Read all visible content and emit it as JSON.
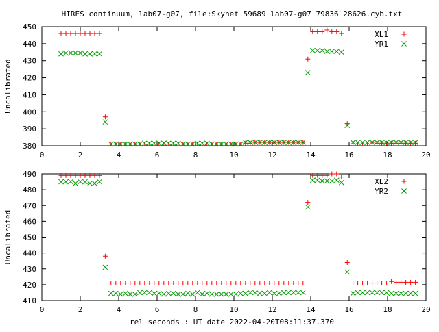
{
  "title": "HIRES continuum, lab07-g07, file:Skynet_59689_lab07-g07_79836_28626.cyb.txt",
  "xlabel": "rel seconds : UT date 2022-04-20T08:11:37.370",
  "colors": {
    "xl": "#ff0000",
    "yr": "#009900",
    "axis": "#000000",
    "background": "#ffffff"
  },
  "chart_data": [
    {
      "type": "scatter",
      "title": "",
      "xlabel": "",
      "ylabel": "Uncalibrated",
      "xlim": [
        0,
        20
      ],
      "ylim": [
        380,
        450
      ],
      "xticks": [
        "0",
        "2",
        "4",
        "6",
        "8",
        "10",
        "12",
        "14",
        "16",
        "18",
        "20"
      ],
      "yticks": [
        "380",
        "390",
        "400",
        "410",
        "420",
        "430",
        "440",
        "450"
      ],
      "grid": false,
      "legend_position": "top-right",
      "series": [
        {
          "name": "XL1",
          "marker": "plus",
          "color": "#ff0000",
          "x": [
            1.0,
            1.25,
            1.5,
            1.75,
            2.0,
            2.25,
            2.5,
            2.75,
            3.0,
            3.3,
            3.6,
            3.85,
            4.1,
            4.35,
            4.6,
            4.85,
            5.1,
            5.35,
            5.6,
            5.85,
            6.1,
            6.35,
            6.6,
            6.85,
            7.1,
            7.35,
            7.6,
            7.85,
            8.1,
            8.35,
            8.6,
            8.85,
            9.1,
            9.35,
            9.6,
            9.85,
            10.1,
            10.35,
            10.6,
            10.85,
            11.1,
            11.35,
            11.6,
            11.85,
            12.1,
            12.35,
            12.6,
            12.85,
            13.1,
            13.35,
            13.6,
            13.85,
            14.1,
            14.35,
            14.6,
            14.85,
            15.1,
            15.35,
            15.6,
            15.9,
            16.2,
            16.45,
            16.7,
            16.95,
            17.2,
            17.45,
            17.7,
            17.95,
            18.2,
            18.45,
            18.7,
            18.95,
            19.2,
            19.45
          ],
          "y": [
            446,
            446,
            446,
            446,
            446,
            446,
            446,
            446,
            446,
            397,
            381,
            381,
            381,
            381,
            381,
            381,
            381,
            381,
            381,
            381,
            381,
            381,
            381,
            381,
            381,
            381,
            381,
            381,
            381,
            381,
            381,
            381,
            381,
            381,
            381,
            381,
            381,
            381,
            381.5,
            381.5,
            382,
            382,
            382,
            382,
            382,
            382,
            382,
            382,
            382,
            382,
            382,
            431,
            447,
            447,
            447,
            448,
            447,
            447,
            446,
            393,
            381,
            381,
            381,
            381,
            382,
            381.5,
            381.5,
            381.5,
            381.5,
            381.5,
            381.5,
            381.5,
            381.5,
            381.5
          ]
        },
        {
          "name": "YR1",
          "marker": "cross",
          "color": "#009900",
          "x": [
            1.0,
            1.25,
            1.5,
            1.75,
            2.0,
            2.25,
            2.5,
            2.75,
            3.0,
            3.3,
            3.6,
            3.85,
            4.1,
            4.35,
            4.6,
            4.85,
            5.1,
            5.35,
            5.6,
            5.85,
            6.1,
            6.35,
            6.6,
            6.85,
            7.1,
            7.35,
            7.6,
            7.85,
            8.1,
            8.35,
            8.6,
            8.85,
            9.1,
            9.35,
            9.6,
            9.85,
            10.1,
            10.35,
            10.6,
            10.85,
            11.1,
            11.35,
            11.6,
            11.85,
            12.1,
            12.35,
            12.6,
            12.85,
            13.1,
            13.35,
            13.6,
            13.85,
            14.1,
            14.35,
            14.6,
            14.85,
            15.1,
            15.35,
            15.6,
            15.9,
            16.2,
            16.45,
            16.7,
            16.95,
            17.2,
            17.45,
            17.7,
            17.95,
            18.2,
            18.45,
            18.7,
            18.95,
            19.2,
            19.45
          ],
          "y": [
            434,
            434.5,
            434.5,
            434.5,
            434.5,
            434,
            434,
            434,
            434,
            394,
            381,
            381,
            381,
            381,
            381,
            381,
            381,
            381.5,
            381.5,
            381.5,
            381.5,
            381.5,
            381.5,
            381.5,
            381.5,
            381,
            381,
            381,
            381.5,
            381.5,
            381.5,
            381,
            381,
            381,
            381,
            381,
            381,
            381,
            382,
            382,
            382,
            382,
            382,
            382,
            382,
            382,
            382,
            382,
            382,
            382,
            382,
            423,
            436,
            436,
            436,
            435.5,
            435.5,
            435.5,
            435,
            392,
            382,
            382,
            382,
            382,
            382,
            382,
            382,
            382,
            382,
            382,
            382,
            382,
            382,
            382
          ]
        }
      ]
    },
    {
      "type": "scatter",
      "title": "",
      "xlabel": "rel seconds : UT date 2022-04-20T08:11:37.370",
      "ylabel": "Uncalibrated",
      "xlim": [
        0,
        20
      ],
      "ylim": [
        410,
        490
      ],
      "xticks": [
        "0",
        "2",
        "4",
        "6",
        "8",
        "10",
        "12",
        "14",
        "16",
        "18",
        "20"
      ],
      "yticks": [
        "410",
        "420",
        "430",
        "440",
        "450",
        "460",
        "470",
        "480",
        "490"
      ],
      "grid": false,
      "legend_position": "top-right",
      "series": [
        {
          "name": "XL2",
          "marker": "plus",
          "color": "#ff0000",
          "x": [
            1.0,
            1.25,
            1.5,
            1.75,
            2.0,
            2.25,
            2.5,
            2.75,
            3.0,
            3.3,
            3.6,
            3.85,
            4.1,
            4.35,
            4.6,
            4.85,
            5.1,
            5.35,
            5.6,
            5.85,
            6.1,
            6.35,
            6.6,
            6.85,
            7.1,
            7.35,
            7.6,
            7.85,
            8.1,
            8.35,
            8.6,
            8.85,
            9.1,
            9.35,
            9.6,
            9.85,
            10.1,
            10.35,
            10.6,
            10.85,
            11.1,
            11.35,
            11.6,
            11.85,
            12.1,
            12.35,
            12.6,
            12.85,
            13.1,
            13.35,
            13.6,
            13.85,
            14.1,
            14.35,
            14.6,
            14.85,
            15.1,
            15.35,
            15.6,
            15.9,
            16.2,
            16.45,
            16.7,
            16.95,
            17.2,
            17.45,
            17.7,
            17.95,
            18.2,
            18.45,
            18.7,
            18.95,
            19.2,
            19.45
          ],
          "y": [
            489,
            489,
            489,
            489,
            489,
            489,
            489,
            489,
            489,
            438,
            421,
            421,
            421,
            421,
            421,
            421,
            421,
            421,
            421,
            421,
            421,
            421,
            421,
            421,
            421,
            421,
            421,
            421,
            421,
            421,
            421,
            421,
            421,
            421,
            421,
            421,
            421,
            421,
            421,
            421,
            421,
            421,
            421,
            421,
            421,
            421,
            421,
            421,
            421,
            421,
            421,
            472,
            489,
            489,
            489,
            489,
            490,
            490,
            488,
            434,
            421,
            421,
            421,
            421,
            421,
            421,
            421,
            421,
            422,
            421.5,
            421.5,
            421.5,
            421.5,
            421.5
          ]
        },
        {
          "name": "YR2",
          "marker": "cross",
          "color": "#009900",
          "x": [
            1.0,
            1.25,
            1.5,
            1.75,
            2.0,
            2.25,
            2.5,
            2.75,
            3.0,
            3.3,
            3.6,
            3.85,
            4.1,
            4.35,
            4.6,
            4.85,
            5.1,
            5.35,
            5.6,
            5.85,
            6.1,
            6.35,
            6.6,
            6.85,
            7.1,
            7.35,
            7.6,
            7.85,
            8.1,
            8.35,
            8.6,
            8.85,
            9.1,
            9.35,
            9.6,
            9.85,
            10.1,
            10.35,
            10.6,
            10.85,
            11.1,
            11.35,
            11.6,
            11.85,
            12.1,
            12.35,
            12.6,
            12.85,
            13.1,
            13.35,
            13.6,
            13.85,
            14.1,
            14.35,
            14.6,
            14.85,
            15.1,
            15.35,
            15.6,
            15.9,
            16.2,
            16.45,
            16.7,
            16.95,
            17.2,
            17.45,
            17.7,
            17.95,
            18.2,
            18.45,
            18.7,
            18.95,
            19.2,
            19.45
          ],
          "y": [
            485,
            485,
            485,
            484,
            485,
            485,
            484,
            484,
            485,
            431,
            414.5,
            414.5,
            414,
            414.5,
            414,
            414,
            415,
            415,
            415,
            414.5,
            414.5,
            414,
            414.5,
            414.5,
            414,
            414,
            414.5,
            414,
            415,
            414,
            414.5,
            414,
            414,
            414,
            414,
            414,
            414,
            414.5,
            414.5,
            415,
            415,
            414.5,
            414.5,
            415,
            414.5,
            414.5,
            415,
            415,
            415,
            415,
            415,
            469,
            486,
            486,
            485.5,
            485.5,
            485.5,
            486,
            484.5,
            428,
            414.5,
            415,
            415,
            415,
            415,
            415,
            415,
            415,
            414.5,
            414.5,
            414.5,
            414.5,
            414.5,
            414.5
          ]
        }
      ]
    }
  ]
}
